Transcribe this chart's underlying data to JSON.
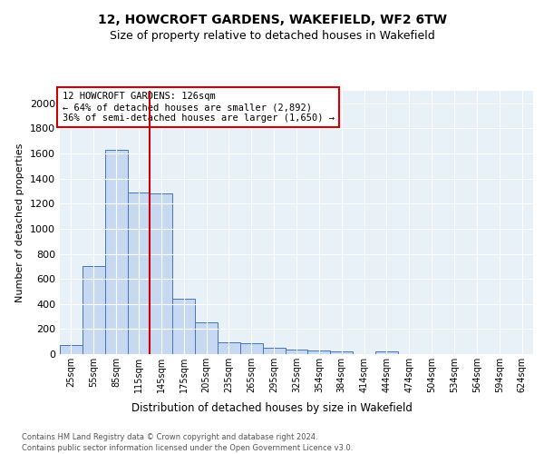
{
  "title": "12, HOWCROFT GARDENS, WAKEFIELD, WF2 6TW",
  "subtitle": "Size of property relative to detached houses in Wakefield",
  "xlabel": "Distribution of detached houses by size in Wakefield",
  "ylabel": "Number of detached properties",
  "footnote1": "Contains HM Land Registry data © Crown copyright and database right 2024.",
  "footnote2": "Contains public sector information licensed under the Open Government Licence v3.0.",
  "annotation_line1": "12 HOWCROFT GARDENS: 126sqm",
  "annotation_line2": "← 64% of detached houses are smaller (2,892)",
  "annotation_line3": "36% of semi-detached houses are larger (1,650) →",
  "bar_labels": [
    "25sqm",
    "55sqm",
    "85sqm",
    "115sqm",
    "145sqm",
    "175sqm",
    "205sqm",
    "235sqm",
    "265sqm",
    "295sqm",
    "325sqm",
    "354sqm",
    "384sqm",
    "414sqm",
    "444sqm",
    "474sqm",
    "504sqm",
    "534sqm",
    "564sqm",
    "594sqm",
    "624sqm"
  ],
  "bar_values": [
    70,
    700,
    1630,
    1290,
    1285,
    445,
    250,
    95,
    90,
    50,
    35,
    30,
    20,
    0,
    20,
    0,
    0,
    0,
    0,
    0,
    0
  ],
  "bar_color": "#c6d9f0",
  "bar_edge_color": "#4472c4",
  "vline_color": "#cc0000",
  "ylim": [
    0,
    2100
  ],
  "yticks": [
    0,
    200,
    400,
    600,
    800,
    1000,
    1200,
    1400,
    1600,
    1800,
    2000
  ],
  "plot_bg_color": "#e8f0f8",
  "grid_color": "#ffffff",
  "annotation_box_color": "#cc0000",
  "title_fontsize": 10,
  "subtitle_fontsize": 9
}
